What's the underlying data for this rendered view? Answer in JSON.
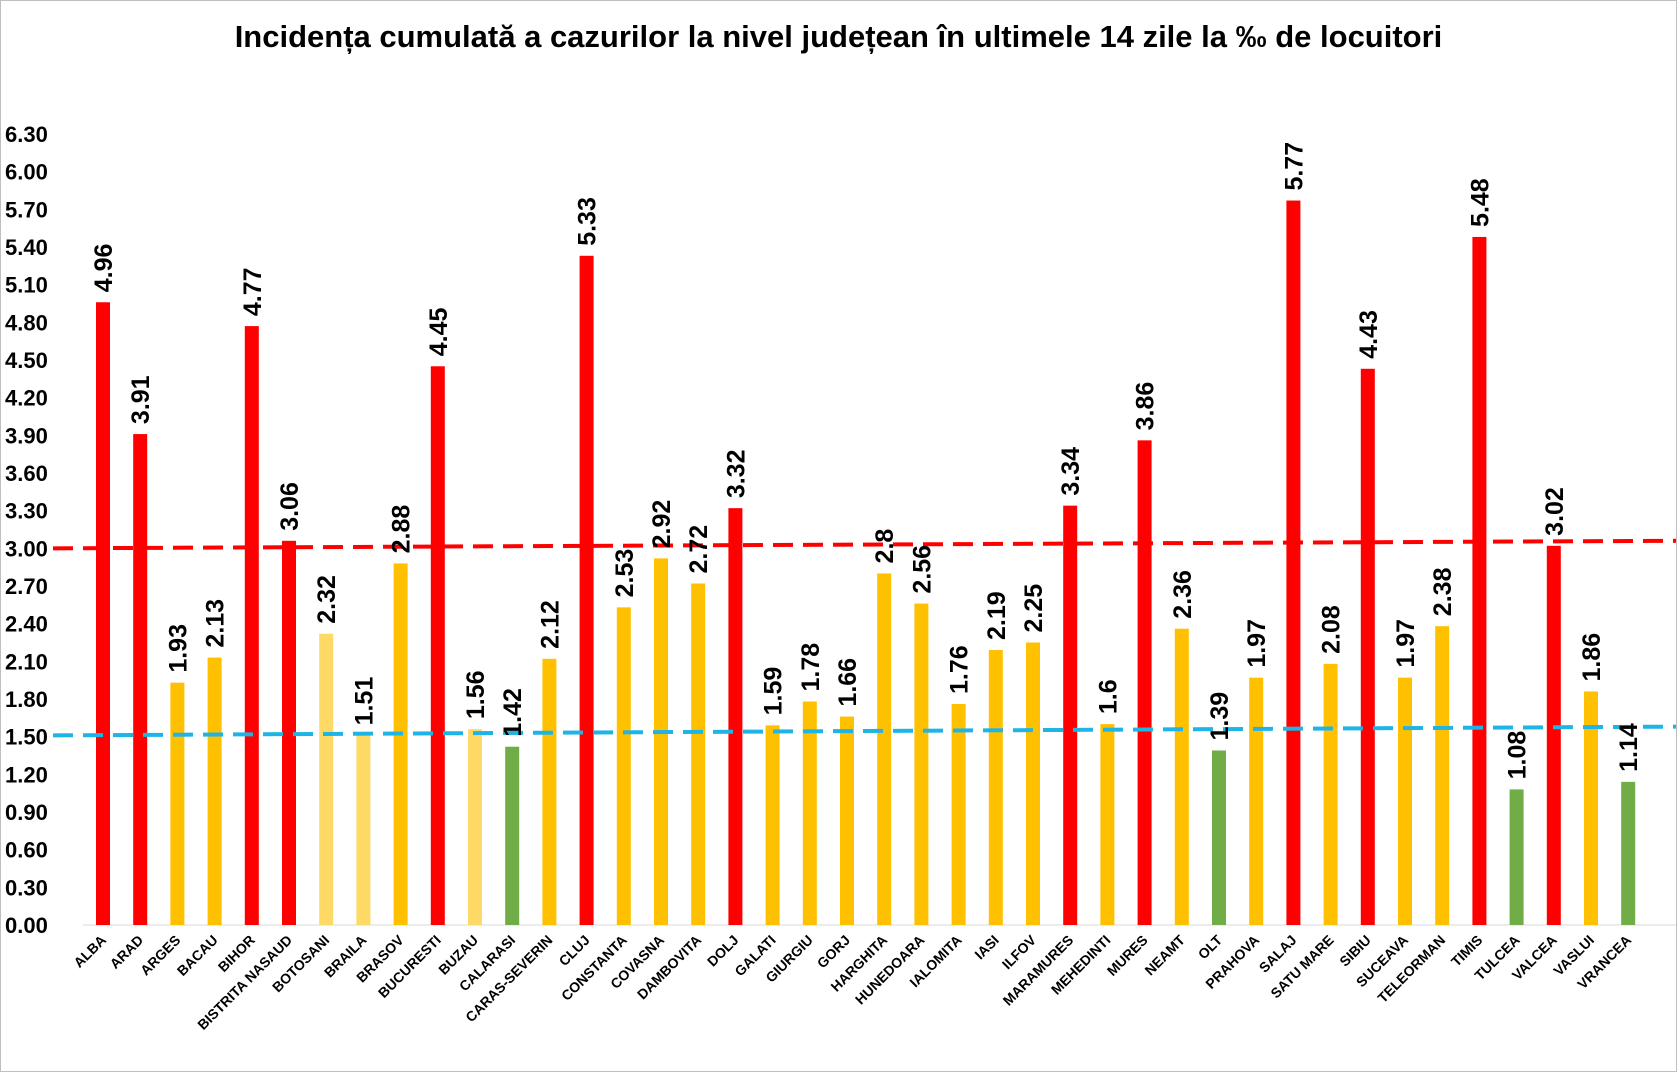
{
  "chart_data": {
    "type": "bar",
    "title": "Incidența cumulată a cazurilor la nivel județean în ultimele 14 zile la ‰ de locuitori",
    "xlabel": "",
    "ylabel": "",
    "ylim": [
      0,
      6.3
    ],
    "y_ticks": [
      "0.00",
      "0.30",
      "0.60",
      "0.90",
      "1.20",
      "1.50",
      "1.80",
      "2.10",
      "2.40",
      "2.70",
      "3.00",
      "3.30",
      "3.60",
      "3.90",
      "4.20",
      "4.50",
      "4.80",
      "5.10",
      "5.40",
      "5.70",
      "6.00",
      "6.30"
    ],
    "grid": false,
    "legend": "none",
    "colors": {
      "red": "#ff0000",
      "yellow": "#ffc000",
      "light_yellow": "#ffd966",
      "green": "#70ad47",
      "red_line": "#ff0000",
      "blue_line": "#1fb4e6"
    },
    "categories": [
      "ALBA",
      "ARAD",
      "ARGES",
      "BACAU",
      "BIHOR",
      "BISTRITA NASAUD",
      "BOTOSANI",
      "BRAILA",
      "BRASOV",
      "BUCURESTI",
      "BUZAU",
      "CALARASI",
      "CARAS-SEVERIN",
      "CLUJ",
      "CONSTANTA",
      "COVASNA",
      "DAMBOVITA",
      "DOLJ",
      "GALATI",
      "GIURGIU",
      "GORJ",
      "HARGHITA",
      "HUNEDOARA",
      "IALOMITA",
      "IASI",
      "ILFOV",
      "MARAMURES",
      "MEHEDINTI",
      "MURES",
      "NEAMT",
      "OLT",
      "PRAHOVA",
      "SALAJ",
      "SATU MARE",
      "SIBIU",
      "SUCEAVA",
      "TELEORMAN",
      "TIMIS",
      "TULCEA",
      "VALCEA",
      "VASLUI",
      "VRANCEA"
    ],
    "values": [
      4.96,
      3.91,
      1.93,
      2.13,
      4.77,
      3.06,
      2.32,
      1.51,
      2.88,
      4.45,
      1.56,
      1.42,
      2.12,
      5.33,
      2.53,
      2.92,
      2.72,
      3.32,
      1.59,
      1.78,
      1.66,
      2.8,
      2.56,
      1.76,
      2.19,
      2.25,
      3.34,
      1.6,
      3.86,
      2.36,
      1.39,
      1.97,
      5.77,
      2.08,
      4.43,
      1.97,
      2.38,
      5.48,
      1.08,
      3.02,
      1.86,
      1.14
    ],
    "value_labels": [
      "4.96",
      "3.91",
      "1.93",
      "2.13",
      "4.77",
      "3.06",
      "2.32",
      "1.51",
      "2.88",
      "4.45",
      "1.56",
      "1.42",
      "2.12",
      "5.33",
      "2.53",
      "2.92",
      "2.72",
      "3.32",
      "1.59",
      "1.78",
      "1.66",
      "2.8",
      "2.56",
      "1.76",
      "2.19",
      "2.25",
      "3.34",
      "1.6",
      "3.86",
      "2.36",
      "1.39",
      "1.97",
      "5.77",
      "2.08",
      "4.43",
      "1.97",
      "2.38",
      "5.48",
      "1.08",
      "3.02",
      "1.86",
      "1.14"
    ],
    "bar_colors": [
      "red",
      "red",
      "yellow",
      "yellow",
      "red",
      "red",
      "light_yellow",
      "light_yellow",
      "yellow",
      "red",
      "light_yellow",
      "green",
      "yellow",
      "red",
      "yellow",
      "yellow",
      "yellow",
      "red",
      "yellow",
      "yellow",
      "yellow",
      "yellow",
      "yellow",
      "yellow",
      "yellow",
      "yellow",
      "red",
      "yellow",
      "red",
      "yellow",
      "green",
      "yellow",
      "red",
      "yellow",
      "red",
      "yellow",
      "yellow",
      "red",
      "green",
      "red",
      "yellow",
      "green"
    ],
    "reference_lines": [
      {
        "color": "red_line",
        "value_start": 3.0,
        "value_end": 3.06
      },
      {
        "color": "blue_line",
        "value_start": 1.51,
        "value_end": 1.58
      }
    ]
  }
}
